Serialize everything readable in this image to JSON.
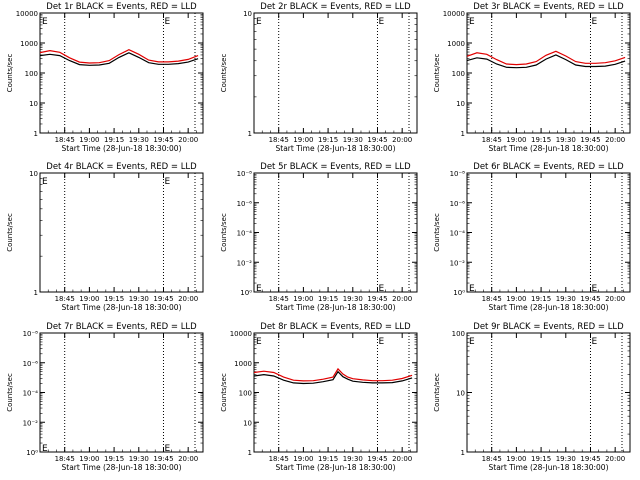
{
  "chart_data": [
    {
      "type": "line",
      "title": "Det 1r BLACK = Events, RED = LLD",
      "ylabel": "Counts/sec",
      "xlabel": "Start Time (28-Jun-18 18:30:00)",
      "scale": "log",
      "ylim": [
        1,
        10000
      ],
      "yticks": [
        "1",
        "10",
        "100",
        "1000",
        "10000"
      ],
      "xlim": [
        0,
        1.65
      ],
      "xticks": [
        "18:45",
        "19:00",
        "19:15",
        "19:30",
        "19:45",
        "20:00"
      ],
      "markers": [
        0.25,
        1.25
      ],
      "flag_label": "E",
      "grid": false,
      "series": [
        {
          "name": "BLACK",
          "color": "#000000",
          "x": [
            0,
            0.1,
            0.2,
            0.3,
            0.4,
            0.5,
            0.6,
            0.7,
            0.8,
            0.9,
            1.0,
            1.1,
            1.2,
            1.3,
            1.4,
            1.5,
            1.6
          ],
          "values": [
            380,
            420,
            380,
            260,
            190,
            180,
            185,
            210,
            330,
            470,
            330,
            220,
            195,
            195,
            205,
            230,
            300
          ]
        },
        {
          "name": "RED",
          "color": "#e00000",
          "x": [
            0,
            0.1,
            0.2,
            0.3,
            0.4,
            0.5,
            0.6,
            0.7,
            0.8,
            0.9,
            1.0,
            1.1,
            1.2,
            1.3,
            1.4,
            1.5,
            1.6
          ],
          "values": [
            480,
            560,
            490,
            320,
            230,
            215,
            220,
            260,
            410,
            600,
            420,
            270,
            235,
            235,
            250,
            285,
            380
          ]
        }
      ]
    },
    {
      "type": "line",
      "title": "Det 2r BLACK = Events, RED = LLD",
      "ylabel": "Counts/sec",
      "xlabel": "Start Time (28-Jun-18 18:30:00)",
      "scale": "log",
      "ylim": [
        1,
        10
      ],
      "yticks": [
        "1",
        "10"
      ],
      "xlim": [
        0,
        1.65
      ],
      "xticks": [
        "18:45",
        "19:00",
        "19:15",
        "19:30",
        "19:45",
        "20:00"
      ],
      "markers": [
        0.25,
        1.25
      ],
      "flag_label": "E",
      "grid": false,
      "series": []
    },
    {
      "type": "line",
      "title": "Det 3r BLACK = Events, RED = LLD",
      "ylabel": "Counts/sec",
      "xlabel": "Start Time (28-Jun-18 18:30:00)",
      "scale": "log",
      "ylim": [
        1,
        10000
      ],
      "yticks": [
        "1",
        "10",
        "100",
        "1000",
        "10000"
      ],
      "xlim": [
        0,
        1.65
      ],
      "xticks": [
        "18:45",
        "19:00",
        "19:15",
        "19:30",
        "19:45",
        "20:00"
      ],
      "markers": [
        0.25,
        1.25
      ],
      "flag_label": "E",
      "grid": false,
      "series": [
        {
          "name": "BLACK",
          "color": "#000000",
          "x": [
            0,
            0.1,
            0.2,
            0.3,
            0.4,
            0.5,
            0.6,
            0.7,
            0.8,
            0.9,
            1.0,
            1.1,
            1.2,
            1.3,
            1.4,
            1.5,
            1.6
          ],
          "values": [
            260,
            320,
            290,
            200,
            155,
            150,
            155,
            185,
            290,
            400,
            280,
            185,
            165,
            165,
            170,
            195,
            250
          ]
        },
        {
          "name": "RED",
          "color": "#e00000",
          "x": [
            0,
            0.1,
            0.2,
            0.3,
            0.4,
            0.5,
            0.6,
            0.7,
            0.8,
            0.9,
            1.0,
            1.1,
            1.2,
            1.3,
            1.4,
            1.5,
            1.6
          ],
          "values": [
            360,
            470,
            420,
            280,
            200,
            190,
            200,
            240,
            390,
            530,
            370,
            240,
            210,
            210,
            220,
            255,
            330
          ]
        }
      ]
    },
    {
      "type": "line",
      "title": "Det 4r BLACK = Events, RED = LLD",
      "ylabel": "Counts/sec",
      "xlabel": "Start Time (28-Jun-18 18:30:00)",
      "scale": "log",
      "ylim": [
        1,
        10
      ],
      "yticks": [
        "1",
        "10"
      ],
      "xlim": [
        0,
        1.65
      ],
      "xticks": [
        "18:45",
        "19:00",
        "19:15",
        "19:30",
        "19:45",
        "20:00"
      ],
      "markers": [
        0.25,
        1.25
      ],
      "flag_label": "E",
      "grid": false,
      "series": []
    },
    {
      "type": "line",
      "title": "Det 5r BLACK = Events, RED = LLD",
      "ylabel": "Counts/sec",
      "xlabel": "Start Time (28-Jun-18 18:30:00)",
      "scale": "log",
      "ylim": [
        1,
        1e-08
      ],
      "yticks": [
        "10⁰",
        "10⁻²",
        "10⁻⁴",
        "10⁻⁶",
        "10⁻⁸"
      ],
      "xlim": [
        0,
        1.65
      ],
      "xticks": [
        "18:45",
        "19:00",
        "19:15",
        "19:30",
        "19:45",
        "20:00"
      ],
      "markers": [
        0.25,
        1.25
      ],
      "flag_label": "E",
      "flag_pos": "bottom",
      "grid": false,
      "series": []
    },
    {
      "type": "line",
      "title": "Det 6r BLACK = Events, RED = LLD",
      "ylabel": "Counts/sec",
      "xlabel": "Start Time (28-Jun-18 18:30:00)",
      "scale": "log",
      "ylim": [
        1,
        1e-08
      ],
      "yticks": [
        "10⁰",
        "10⁻²",
        "10⁻⁴",
        "10⁻⁶",
        "10⁻⁸"
      ],
      "xlim": [
        0,
        1.65
      ],
      "xticks": [
        "18:45",
        "19:00",
        "19:15",
        "19:30",
        "19:45",
        "20:00"
      ],
      "markers": [
        0.25,
        1.25
      ],
      "flag_label": "E",
      "flag_pos": "bottom",
      "grid": false,
      "series": []
    },
    {
      "type": "line",
      "title": "Det 7r BLACK = Events, RED = LLD",
      "ylabel": "Counts/sec",
      "xlabel": "Start Time (28-Jun-18 18:30:00)",
      "scale": "log",
      "ylim": [
        1,
        1e-08
      ],
      "yticks": [
        "10⁰",
        "10⁻²",
        "10⁻⁴",
        "10⁻⁶",
        "10⁻⁸"
      ],
      "xlim": [
        0,
        1.65
      ],
      "xticks": [
        "18:45",
        "19:00",
        "19:15",
        "19:30",
        "19:45",
        "20:00"
      ],
      "markers": [
        0.25,
        1.25
      ],
      "flag_label": "E",
      "flag_pos": "bottom",
      "grid": false,
      "series": []
    },
    {
      "type": "line",
      "title": "Det 8r BLACK = Events, RED = LLD",
      "ylabel": "Counts/sec",
      "xlabel": "Start Time (28-Jun-18 18:30:00)",
      "scale": "log",
      "ylim": [
        1,
        10000
      ],
      "yticks": [
        "1",
        "10",
        "100",
        "1000",
        "10000"
      ],
      "xlim": [
        0,
        1.65
      ],
      "xticks": [
        "18:45",
        "19:00",
        "19:15",
        "19:30",
        "19:45",
        "20:00"
      ],
      "markers": [
        0.25,
        1.25
      ],
      "flag_label": "E",
      "grid": false,
      "series": [
        {
          "name": "BLACK",
          "color": "#000000",
          "x": [
            0,
            0.1,
            0.2,
            0.3,
            0.4,
            0.5,
            0.6,
            0.7,
            0.8,
            0.85,
            0.9,
            0.95,
            1.0,
            1.1,
            1.2,
            1.3,
            1.4,
            1.5,
            1.6
          ],
          "values": [
            360,
            400,
            360,
            260,
            210,
            200,
            205,
            230,
            270,
            500,
            340,
            280,
            240,
            220,
            210,
            210,
            215,
            245,
            310
          ]
        },
        {
          "name": "RED",
          "color": "#e00000",
          "x": [
            0,
            0.1,
            0.2,
            0.3,
            0.4,
            0.5,
            0.6,
            0.7,
            0.8,
            0.85,
            0.9,
            0.95,
            1.0,
            1.1,
            1.2,
            1.3,
            1.4,
            1.5,
            1.6
          ],
          "values": [
            470,
            520,
            470,
            330,
            260,
            245,
            250,
            280,
            330,
            620,
            420,
            330,
            290,
            265,
            250,
            250,
            260,
            295,
            380
          ]
        }
      ]
    },
    {
      "type": "line",
      "title": "Det 9r BLACK = Events, RED = LLD",
      "ylabel": "Counts/sec",
      "xlabel": "Start Time (28-Jun-18 18:30:00)",
      "scale": "log",
      "ylim": [
        1,
        100
      ],
      "yticks": [
        "1",
        "10",
        "100"
      ],
      "xlim": [
        0,
        1.65
      ],
      "xticks": [
        "18:45",
        "19:00",
        "19:15",
        "19:30",
        "19:45",
        "20:00"
      ],
      "markers": [
        0.25,
        1.25
      ],
      "flag_label": "E",
      "grid": false,
      "series": []
    }
  ]
}
